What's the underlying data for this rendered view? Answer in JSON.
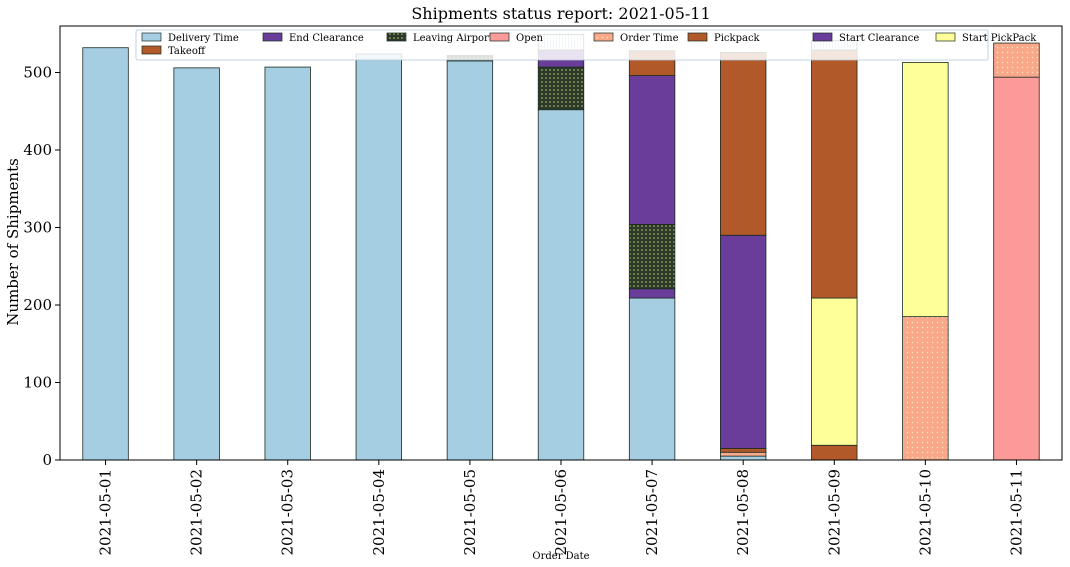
{
  "chart_data": {
    "type": "bar",
    "stacked": true,
    "title": "Shipments status report: 2021-05-11",
    "xlabel": "Order Date",
    "ylabel": "Number of Shipments",
    "ylim": [
      0,
      560
    ],
    "yticks": [
      0,
      100,
      200,
      300,
      400,
      500
    ],
    "grid": false,
    "legend_position": "top",
    "categories": [
      "2021-05-01",
      "2021-05-02",
      "2021-05-03",
      "2021-05-04",
      "2021-05-05",
      "2021-05-06",
      "2021-05-07",
      "2021-05-08",
      "2021-05-09",
      "2021-05-10",
      "2021-05-11"
    ],
    "series": [
      {
        "name": "Delivery Time",
        "color": "#a6cee3",
        "pattern": "solid",
        "values": [
          532,
          506,
          507,
          524,
          515,
          452,
          209,
          5,
          0,
          0,
          0
        ]
      },
      {
        "name": "End Clearance",
        "color": "#6a3d9a",
        "pattern": "solid",
        "values": [
          0,
          0,
          0,
          0,
          0,
          0,
          12,
          0,
          0,
          0,
          0
        ]
      },
      {
        "name": "Leaving Airport",
        "color": "#2b3a2a",
        "pattern": "dots",
        "values": [
          0,
          0,
          0,
          0,
          7,
          55,
          83,
          0,
          0,
          0,
          0
        ]
      },
      {
        "name": "Open",
        "color": "#fb9a99",
        "pattern": "solid",
        "values": [
          0,
          0,
          0,
          0,
          0,
          0,
          0,
          0,
          0,
          0,
          494
        ]
      },
      {
        "name": "Order Time",
        "color": "#f9a98a",
        "pattern": "dotted",
        "values": [
          0,
          0,
          0,
          0,
          0,
          0,
          0,
          5,
          0,
          185,
          44
        ]
      },
      {
        "name": "Pickpack",
        "color": "#b15928",
        "pattern": "solid",
        "values": [
          0,
          0,
          0,
          0,
          0,
          0,
          0,
          5,
          19,
          0,
          0
        ]
      },
      {
        "name": "Start Clearance",
        "color": "#6a3d9a",
        "pattern": "solid",
        "values": [
          0,
          0,
          0,
          0,
          0,
          22,
          192,
          275,
          0,
          0,
          0
        ]
      },
      {
        "name": "Start PickPack",
        "color": "#ffff99",
        "pattern": "solid",
        "values": [
          0,
          0,
          0,
          0,
          0,
          0,
          0,
          0,
          190,
          328,
          0
        ]
      },
      {
        "name": "Takeoff",
        "color": "#b15928",
        "pattern": "solid",
        "values": [
          0,
          0,
          0,
          0,
          0,
          0,
          32,
          236,
          320,
          0,
          0
        ]
      },
      {
        "name": "",
        "color": "#a6cee3",
        "pattern": "stripes",
        "values": [
          0,
          0,
          0,
          0,
          0,
          20,
          0,
          0,
          12,
          0,
          0
        ]
      }
    ]
  }
}
